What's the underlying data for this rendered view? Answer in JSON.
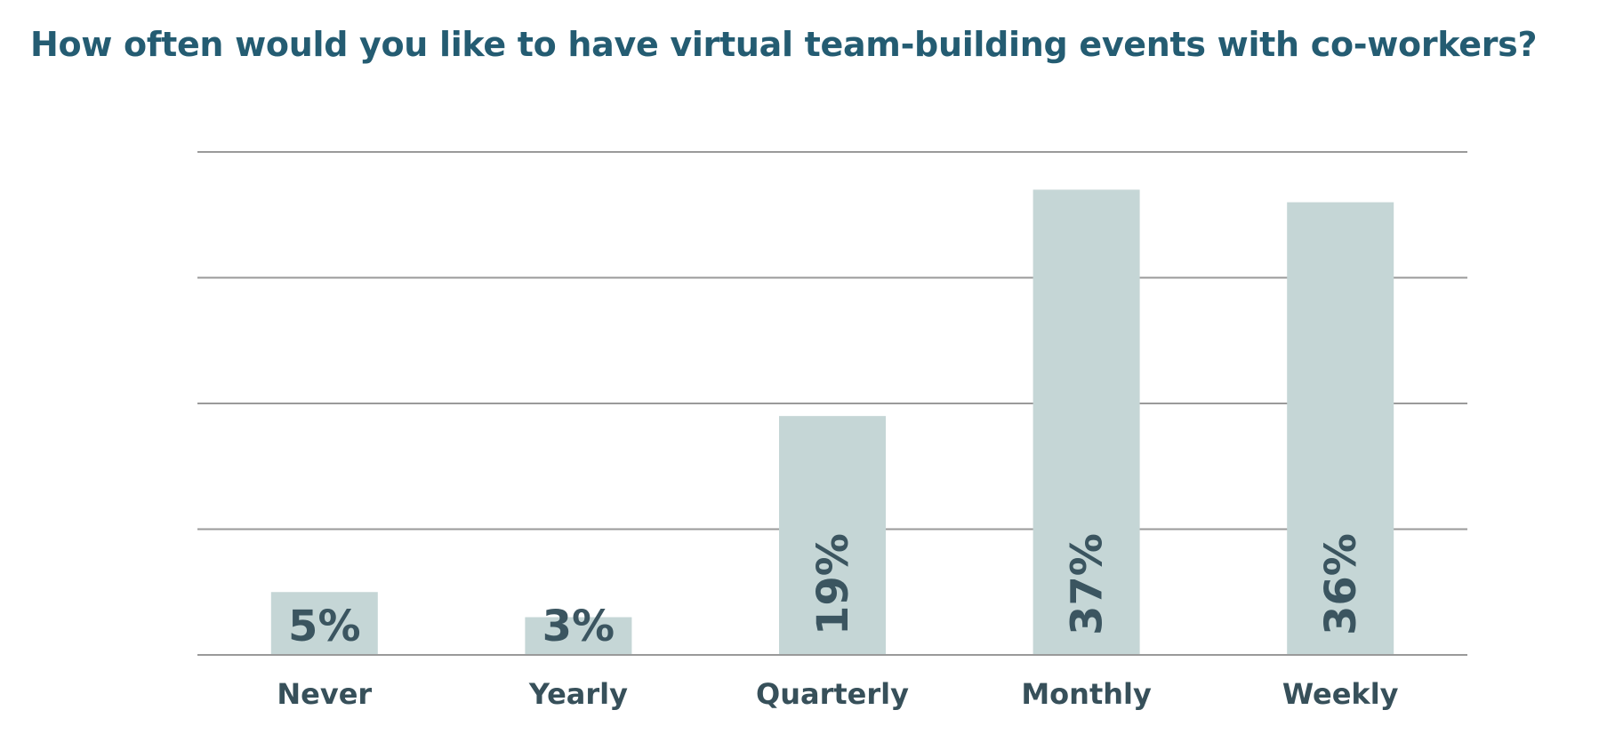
{
  "chart_data": {
    "type": "bar",
    "title": "How often would you like to have virtual team-building events with co-workers?",
    "categories": [
      "Never",
      "Yearly",
      "Quarterly",
      "Monthly",
      "Weekly"
    ],
    "values": [
      5,
      3,
      19,
      37,
      36
    ],
    "value_labels": [
      "5%",
      "3%",
      "19%",
      "37%",
      "36%"
    ],
    "value_label_rotated": [
      false,
      false,
      true,
      true,
      true
    ],
    "xlabel": "",
    "ylabel": "",
    "grid": true,
    "legend": "none",
    "colors": {
      "bar": "#c5d6d6",
      "title": "#245c72",
      "label": "#37505a",
      "grid": "#9a9a9a"
    }
  }
}
